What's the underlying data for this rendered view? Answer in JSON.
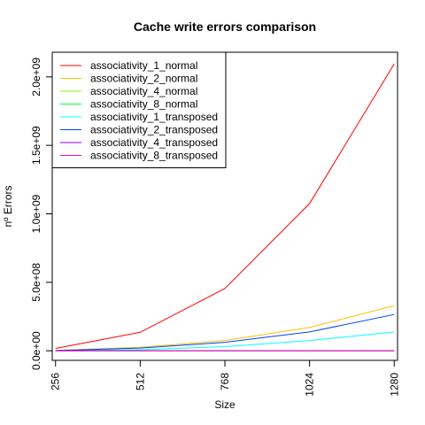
{
  "chart_data": {
    "type": "line",
    "title": "Cache write errors comparison",
    "xlabel": "Size",
    "ylabel": "nº Errors",
    "x": [
      256,
      512,
      768,
      1024,
      1280
    ],
    "x_tick_labels": [
      "256",
      "512",
      "768",
      "1024",
      "1280"
    ],
    "y_ticks": [
      0,
      500000000,
      1000000000,
      1500000000,
      2000000000
    ],
    "y_tick_labels": [
      "0.0e+00",
      "5.0e+08",
      "1.0e+09",
      "1.5e+09",
      "2.0e+09"
    ],
    "xlim": [
      246,
      1290
    ],
    "ylim": [
      -70000000,
      2180000000
    ],
    "grid": false,
    "legend_position": "top-left",
    "series": [
      {
        "name": "associativity_1_normal",
        "color": "#FF0000",
        "values": [
          17000000,
          135000000,
          455000000,
          1075000000,
          2095000000
        ]
      },
      {
        "name": "associativity_2_normal",
        "color": "#FFBF00",
        "values": [
          3000000,
          25000000,
          75000000,
          170000000,
          330000000
        ]
      },
      {
        "name": "associativity_4_normal",
        "color": "#80FF00",
        "values": [
          0,
          0,
          0,
          0,
          0
        ]
      },
      {
        "name": "associativity_8_normal",
        "color": "#00FF40",
        "values": [
          0,
          0,
          0,
          0,
          0
        ]
      },
      {
        "name": "associativity_1_transposed",
        "color": "#00FFFF",
        "values": [
          1000000,
          8000000,
          30000000,
          75000000,
          137000000
        ]
      },
      {
        "name": "associativity_2_transposed",
        "color": "#0040FF",
        "values": [
          2000000,
          20000000,
          62000000,
          138000000,
          265000000
        ]
      },
      {
        "name": "associativity_4_transposed",
        "color": "#8000FF",
        "values": [
          0,
          0,
          0,
          0,
          0
        ]
      },
      {
        "name": "associativity_8_transposed",
        "color": "#FF00BF",
        "values": [
          0,
          0,
          0,
          0,
          0
        ]
      }
    ]
  }
}
